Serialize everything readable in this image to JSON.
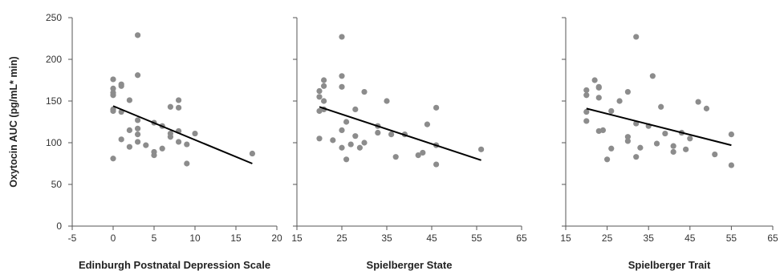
{
  "figure": {
    "ylabel": "Oxytocin AUC (pg/mL* min)",
    "yticks": [
      0,
      50,
      100,
      150,
      200,
      250
    ],
    "ylim": [
      0,
      250
    ]
  },
  "chart_data": [
    {
      "type": "scatter",
      "xlabel": "Edinburgh Postnatal Depression Scale",
      "ylabel": "Oxytocin AUC (pg/mL* min)",
      "xlim": [
        -5,
        20
      ],
      "ylim": [
        0,
        250
      ],
      "xticks": [
        -5,
        0,
        5,
        10,
        15,
        20
      ],
      "points": [
        [
          0,
          176
        ],
        [
          0,
          165
        ],
        [
          0,
          160
        ],
        [
          0,
          157
        ],
        [
          0,
          140
        ],
        [
          0,
          138
        ],
        [
          0,
          81
        ],
        [
          1,
          170
        ],
        [
          1,
          168
        ],
        [
          1,
          137
        ],
        [
          1,
          104
        ],
        [
          2,
          151
        ],
        [
          2,
          115
        ],
        [
          2,
          95
        ],
        [
          3,
          229
        ],
        [
          3,
          181
        ],
        [
          3,
          127
        ],
        [
          3,
          117
        ],
        [
          3,
          110
        ],
        [
          3,
          101
        ],
        [
          4,
          97
        ],
        [
          5,
          124
        ],
        [
          5,
          89
        ],
        [
          5,
          85
        ],
        [
          6,
          120
        ],
        [
          6,
          93
        ],
        [
          7,
          143
        ],
        [
          7,
          111
        ],
        [
          7,
          107
        ],
        [
          8,
          151
        ],
        [
          8,
          142
        ],
        [
          8,
          114
        ],
        [
          8,
          101
        ],
        [
          9,
          98
        ],
        [
          9,
          75
        ],
        [
          10,
          111
        ],
        [
          17,
          87
        ]
      ],
      "trendline": {
        "x": [
          0,
          17
        ],
        "y": [
          144,
          75
        ]
      },
      "point_color": "#8c8c8c",
      "line_color": "#000000"
    },
    {
      "type": "scatter",
      "xlabel": "Spielberger State",
      "xlim": [
        15,
        65
      ],
      "ylim": [
        0,
        250
      ],
      "xticks": [
        15,
        25,
        35,
        45,
        55,
        65
      ],
      "points": [
        [
          20,
          162
        ],
        [
          20,
          155
        ],
        [
          20,
          138
        ],
        [
          20,
          105
        ],
        [
          21,
          175
        ],
        [
          21,
          168
        ],
        [
          21,
          150
        ],
        [
          21,
          140
        ],
        [
          23,
          103
        ],
        [
          25,
          227
        ],
        [
          25,
          180
        ],
        [
          25,
          167
        ],
        [
          25,
          115
        ],
        [
          25,
          94
        ],
        [
          26,
          125
        ],
        [
          26,
          80
        ],
        [
          27,
          98
        ],
        [
          28,
          140
        ],
        [
          28,
          108
        ],
        [
          29,
          94
        ],
        [
          30,
          161
        ],
        [
          30,
          100
        ],
        [
          33,
          120
        ],
        [
          33,
          112
        ],
        [
          35,
          150
        ],
        [
          36,
          110
        ],
        [
          37,
          83
        ],
        [
          39,
          110
        ],
        [
          42,
          85
        ],
        [
          43,
          88
        ],
        [
          44,
          122
        ],
        [
          46,
          142
        ],
        [
          46,
          97
        ],
        [
          46,
          74
        ],
        [
          56,
          92
        ]
      ],
      "trendline": {
        "x": [
          20,
          56
        ],
        "y": [
          143,
          79
        ]
      },
      "point_color": "#8c8c8c",
      "line_color": "#000000"
    },
    {
      "type": "scatter",
      "xlabel": "Spielberger Trait",
      "xlim": [
        15,
        65
      ],
      "ylim": [
        0,
        250
      ],
      "xticks": [
        15,
        25,
        35,
        45,
        55,
        65
      ],
      "points": [
        [
          20,
          163
        ],
        [
          20,
          157
        ],
        [
          20,
          137
        ],
        [
          20,
          126
        ],
        [
          22,
          175
        ],
        [
          23,
          167
        ],
        [
          23,
          166
        ],
        [
          23,
          154
        ],
        [
          23,
          114
        ],
        [
          24,
          115
        ],
        [
          25,
          80
        ],
        [
          26,
          138
        ],
        [
          26,
          93
        ],
        [
          28,
          150
        ],
        [
          30,
          161
        ],
        [
          30,
          107
        ],
        [
          30,
          102
        ],
        [
          32,
          227
        ],
        [
          32,
          123
        ],
        [
          32,
          83
        ],
        [
          33,
          94
        ],
        [
          35,
          120
        ],
        [
          36,
          180
        ],
        [
          37,
          99
        ],
        [
          38,
          143
        ],
        [
          39,
          111
        ],
        [
          41,
          96
        ],
        [
          41,
          89
        ],
        [
          43,
          112
        ],
        [
          44,
          92
        ],
        [
          45,
          105
        ],
        [
          47,
          149
        ],
        [
          49,
          141
        ],
        [
          51,
          86
        ],
        [
          55,
          110
        ],
        [
          55,
          73
        ]
      ],
      "trendline": {
        "x": [
          20,
          55
        ],
        "y": [
          141,
          97
        ]
      },
      "point_color": "#8c8c8c",
      "line_color": "#000000"
    }
  ]
}
